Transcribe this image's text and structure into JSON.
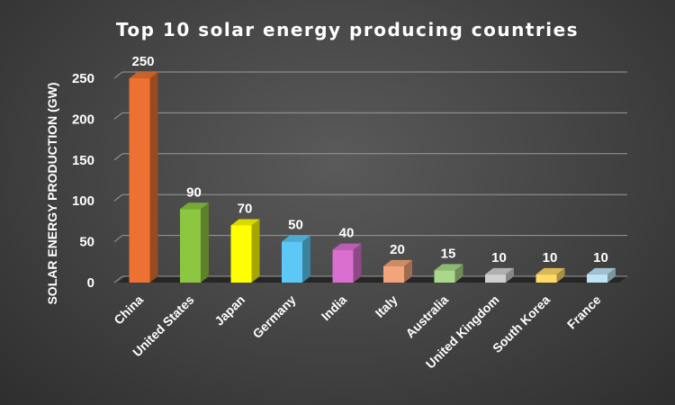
{
  "chart_data": {
    "type": "bar",
    "title": "Top 10 solar energy producing countries",
    "xlabel": "",
    "ylabel": "SOLAR ENERGY PRODUCTION (GW)",
    "ylim": [
      0,
      250
    ],
    "yticks": [
      0,
      50,
      100,
      150,
      200,
      250
    ],
    "grid": true,
    "legend": "none",
    "categories": [
      "China",
      "United States",
      "Japan",
      "Germany",
      "India",
      "Italy",
      "Australia",
      "United Kingdom",
      "South Korea",
      "France"
    ],
    "values": [
      250,
      90,
      70,
      50,
      40,
      20,
      15,
      10,
      10,
      10
    ],
    "colors": [
      "#ED7231",
      "#8DC640",
      "#FFFF00",
      "#5BC8F5",
      "#DA6FD0",
      "#F4A47A",
      "#A9D88A",
      "#CFCFCF",
      "#FFDA66",
      "#BDE3F5"
    ]
  }
}
